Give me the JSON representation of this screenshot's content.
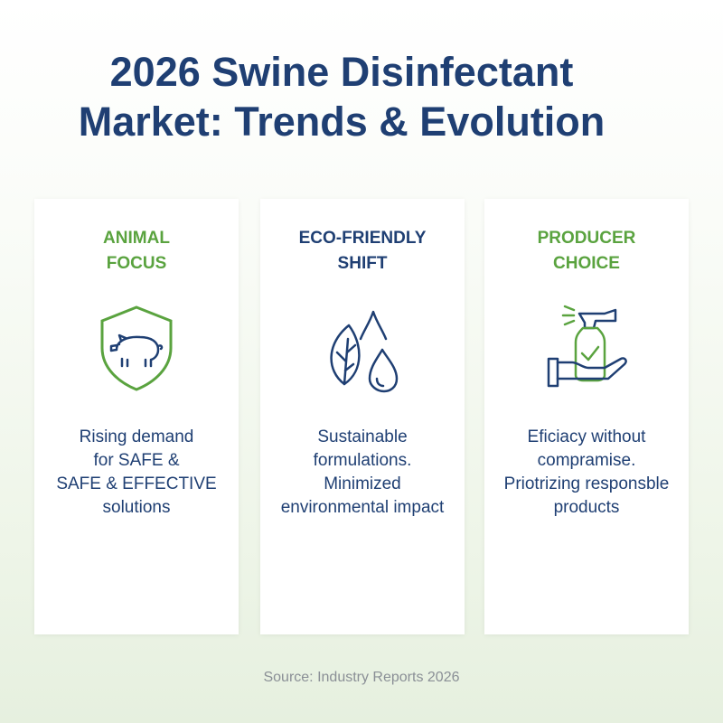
{
  "title": [
    "2026 Swine Disinfectant",
    "Market: Trends & Evolution"
  ],
  "cards": [
    {
      "heading": [
        "ANIMAL",
        "FOCUS"
      ],
      "body": [
        "Rising demand",
        "for SAFE &",
        "SAFE & EFFECTIVE",
        "solutions"
      ]
    },
    {
      "heading": [
        "ECO-FRIENDLY",
        "SHIFT"
      ],
      "body": [
        "Sustainable",
        "formulations.",
        "Minimized",
        "environmental impact"
      ]
    },
    {
      "heading": [
        "PRODUCER",
        "CHOICE"
      ],
      "body": [
        "Eficiacy without",
        "compramise.",
        "Priotrizing responsble",
        "products"
      ]
    }
  ],
  "source": "Source: Industry Reports 2026"
}
